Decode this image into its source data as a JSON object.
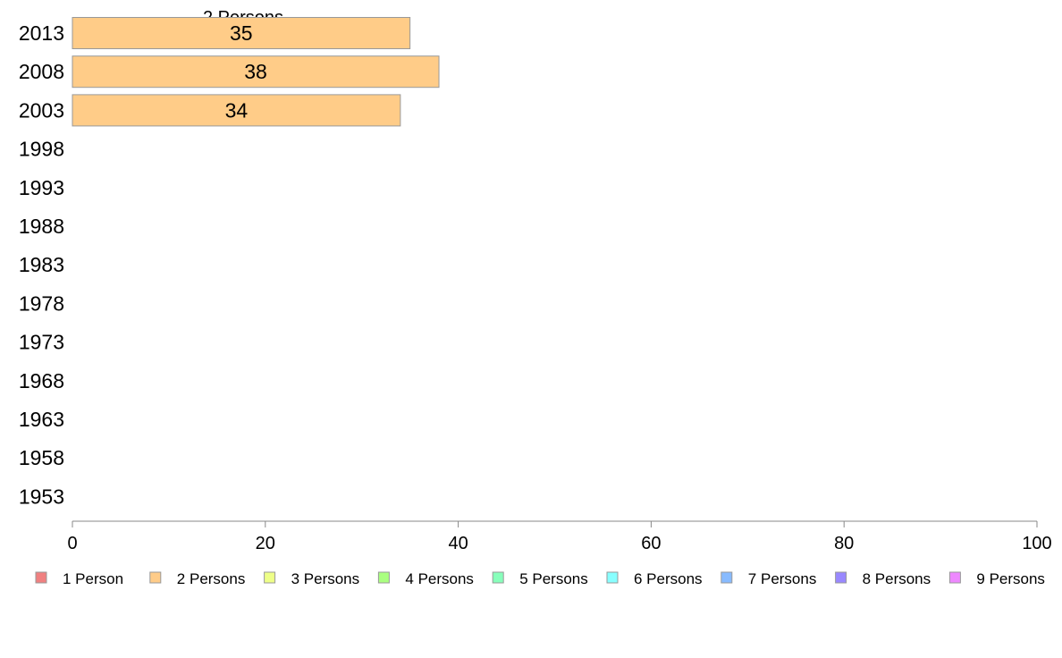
{
  "chart_data": {
    "type": "bar",
    "orientation": "horizontal",
    "stacked": true,
    "categories": [
      "2013",
      "2008",
      "2003",
      "1998",
      "1993",
      "1988",
      "1983",
      "1978",
      "1973",
      "1968",
      "1963",
      "1958",
      "1953"
    ],
    "series": [
      {
        "name": "1 Person",
        "color": "#f08080",
        "values": [
          null,
          null,
          null,
          null,
          null,
          null,
          null,
          null,
          null,
          null,
          null,
          null,
          null
        ]
      },
      {
        "name": "2 Persons",
        "color": "#ffcc88",
        "values": [
          35,
          38,
          34,
          null,
          null,
          null,
          null,
          null,
          null,
          null,
          null,
          null,
          null
        ]
      },
      {
        "name": "3 Persons",
        "color": "#eeff88",
        "values": [
          null,
          null,
          null,
          null,
          null,
          null,
          null,
          null,
          null,
          null,
          null,
          null,
          null
        ]
      },
      {
        "name": "4 Persons",
        "color": "#aaff80",
        "values": [
          null,
          null,
          null,
          null,
          null,
          null,
          null,
          null,
          null,
          null,
          null,
          null,
          null
        ]
      },
      {
        "name": "5 Persons",
        "color": "#88ffbb",
        "values": [
          null,
          null,
          null,
          null,
          null,
          null,
          null,
          null,
          null,
          null,
          null,
          null,
          null
        ]
      },
      {
        "name": "6 Persons",
        "color": "#88ffff",
        "values": [
          null,
          null,
          null,
          null,
          null,
          null,
          null,
          null,
          null,
          null,
          null,
          null,
          null
        ]
      },
      {
        "name": "7 Persons",
        "color": "#88bbff",
        "values": [
          null,
          null,
          null,
          null,
          null,
          null,
          null,
          null,
          null,
          null,
          null,
          null,
          null
        ]
      },
      {
        "name": "8 Persons",
        "color": "#9988ff",
        "values": [
          null,
          null,
          null,
          null,
          null,
          null,
          null,
          null,
          null,
          null,
          null,
          null,
          null
        ]
      },
      {
        "name": "9 Persons",
        "color": "#ee88ff",
        "values": [
          null,
          null,
          null,
          null,
          null,
          null,
          null,
          null,
          null,
          null,
          null,
          null,
          null
        ]
      }
    ],
    "series_title": "2 Persons",
    "data_labels": [
      "35",
      "38",
      "34"
    ],
    "xlim": [
      0,
      100
    ],
    "xticks": [
      "0",
      "20",
      "40",
      "60",
      "80",
      "100"
    ],
    "grid": false,
    "legend_position": "bottom"
  }
}
